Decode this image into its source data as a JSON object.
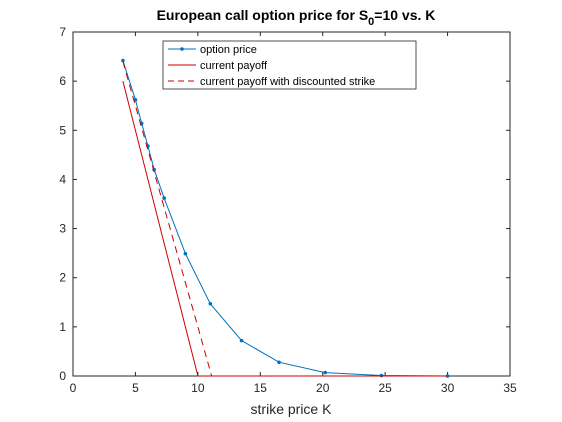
{
  "chart_data": {
    "type": "line",
    "title": {
      "prefix": "European call option price for S",
      "subscript": "0",
      "suffix": "=10 vs. K"
    },
    "xlabel": "strike price K",
    "ylabel": "",
    "xlim": [
      0,
      35
    ],
    "ylim": [
      0,
      7
    ],
    "xticks": [
      0,
      5,
      10,
      15,
      20,
      25,
      30,
      35
    ],
    "yticks": [
      0,
      1,
      2,
      3,
      4,
      5,
      6,
      7
    ],
    "grid": false,
    "legend_position": "top-center",
    "series": [
      {
        "name": "option price",
        "color": "#0072bd",
        "style": "solid",
        "marker": "dot",
        "x": [
          4.0,
          5.0,
          5.5,
          6.0,
          6.5,
          7.3,
          9.0,
          11.0,
          13.5,
          16.5,
          20.2,
          24.7,
          30.0
        ],
        "y": [
          6.42,
          5.62,
          5.14,
          4.68,
          4.2,
          3.62,
          2.49,
          1.47,
          0.72,
          0.28,
          0.07,
          0.01,
          0.0
        ]
      },
      {
        "name": "current payoff",
        "color": "#cc0000",
        "style": "solid",
        "marker": "none",
        "x": [
          4.0,
          5.0,
          6.0,
          7.0,
          8.0,
          9.0,
          10.0,
          30.0
        ],
        "y": [
          6.0,
          5.0,
          4.0,
          3.0,
          2.0,
          1.0,
          0.0,
          0.0
        ]
      },
      {
        "name": "current payoff with discounted strike",
        "color": "#cc0000",
        "style": "dashed",
        "marker": "none",
        "x": [
          4.0,
          5.0,
          6.0,
          7.0,
          8.0,
          9.0,
          10.0,
          11.1
        ],
        "y": [
          6.4,
          5.5,
          4.6,
          3.7,
          2.8,
          1.9,
          1.0,
          0.0
        ]
      }
    ]
  }
}
